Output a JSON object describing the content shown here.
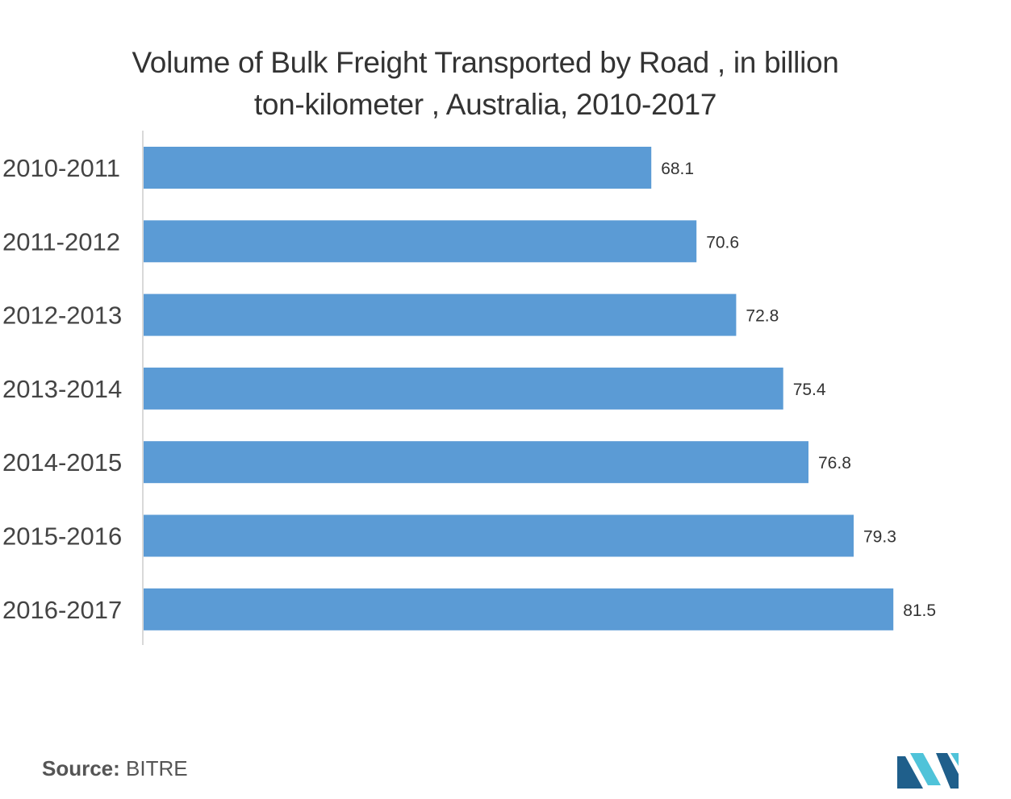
{
  "chart_data": {
    "type": "bar",
    "orientation": "horizontal",
    "title_lines": [
      "Volume of Bulk Freight Transported by Road , in billion",
      "ton-kilometer , Australia, 2010-2017"
    ],
    "categories": [
      "2010-2011",
      "2011-2012",
      "2012-2013",
      "2013-2014",
      "2014-2015",
      "2015-2016",
      "2016-2017"
    ],
    "values": [
      68.1,
      70.6,
      72.8,
      75.4,
      76.8,
      79.3,
      81.5
    ],
    "data_labels": [
      "68.1",
      "70.6",
      "72.8",
      "75.4",
      "76.8",
      "79.3",
      "81.5"
    ],
    "xlabel": "",
    "ylabel": "",
    "xlim": [
      40,
      86
    ],
    "grid": false,
    "legend": "none",
    "bar_color": "#5b9bd5"
  },
  "source": {
    "label": "Source:",
    "text": " BITRE"
  },
  "logo": {
    "icon": "mordor-intelligence-logo-icon",
    "colors": [
      "#1f5f8b",
      "#4fc3d9"
    ]
  }
}
